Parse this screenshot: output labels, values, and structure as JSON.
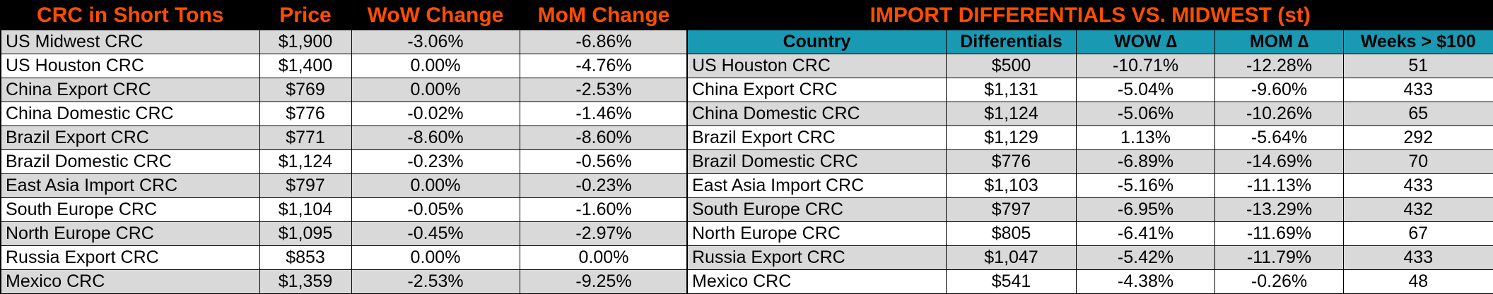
{
  "left": {
    "headers": [
      "CRC in Short Tons",
      "Price",
      "WoW Change",
      "MoM Change"
    ],
    "rows": [
      {
        "name": "US Midwest CRC",
        "price": "$1,900",
        "wow": "-3.06%",
        "mom": "-6.86%"
      },
      {
        "name": "US Houston CRC",
        "price": "$1,400",
        "wow": "0.00%",
        "mom": "-4.76%"
      },
      {
        "name": "China Export CRC",
        "price": "$769",
        "wow": "0.00%",
        "mom": "-2.53%"
      },
      {
        "name": "China Domestic CRC",
        "price": "$776",
        "wow": "-0.02%",
        "mom": "-1.46%"
      },
      {
        "name": "Brazil Export CRC",
        "price": "$771",
        "wow": "-8.60%",
        "mom": "-8.60%"
      },
      {
        "name": "Brazil Domestic CRC",
        "price": "$1,124",
        "wow": "-0.23%",
        "mom": "-0.56%"
      },
      {
        "name": "East Asia Import CRC",
        "price": "$797",
        "wow": "0.00%",
        "mom": "-0.23%"
      },
      {
        "name": "South Europe CRC",
        "price": "$1,104",
        "wow": "-0.05%",
        "mom": "-1.60%"
      },
      {
        "name": "North Europe CRC",
        "price": "$1,095",
        "wow": "-0.45%",
        "mom": "-2.97%"
      },
      {
        "name": "Russia Export CRC",
        "price": "$853",
        "wow": "0.00%",
        "mom": "0.00%"
      },
      {
        "name": "Mexico CRC",
        "price": "$1,359",
        "wow": "-2.53%",
        "mom": "-9.25%"
      }
    ]
  },
  "right": {
    "title": "IMPORT DIFFERENTIALS VS. MIDWEST (st)",
    "headers": [
      "Country",
      "Differentials",
      "WOW ∆",
      "MOM ∆",
      "Weeks > $100"
    ],
    "rows": [
      {
        "name": "US Houston CRC",
        "diff": "$500",
        "wow": "-10.71%",
        "mom": "-12.28%",
        "weeks": "51"
      },
      {
        "name": "China Export CRC",
        "diff": "$1,131",
        "wow": "-5.04%",
        "mom": "-9.60%",
        "weeks": "433"
      },
      {
        "name": "China Domestic CRC",
        "diff": "$1,124",
        "wow": "-5.06%",
        "mom": "-10.26%",
        "weeks": "65"
      },
      {
        "name": "Brazil Export CRC",
        "diff": "$1,129",
        "wow": "1.13%",
        "mom": "-5.64%",
        "weeks": "292"
      },
      {
        "name": "Brazil Domestic CRC",
        "diff": "$776",
        "wow": "-6.89%",
        "mom": "-14.69%",
        "weeks": "70"
      },
      {
        "name": "East Asia Import CRC",
        "diff": "$1,103",
        "wow": "-5.16%",
        "mom": "-11.13%",
        "weeks": "433"
      },
      {
        "name": "South Europe CRC",
        "diff": "$797",
        "wow": "-6.95%",
        "mom": "-13.29%",
        "weeks": "432"
      },
      {
        "name": "North Europe CRC",
        "diff": "$805",
        "wow": "-6.41%",
        "mom": "-11.69%",
        "weeks": "67"
      },
      {
        "name": "Russia Export CRC",
        "diff": "$1,047",
        "wow": "-5.42%",
        "mom": "-11.79%",
        "weeks": "433"
      },
      {
        "name": "Mexico CRC",
        "diff": "$541",
        "wow": "-4.38%",
        "mom": "-0.26%",
        "weeks": "48"
      }
    ]
  },
  "colors": {
    "title_background": "#000000",
    "title_text": "#ff4d00",
    "header_background": "#1a99b3",
    "shaded_row": "#d9d9d9",
    "plain_row": "#ffffff"
  }
}
